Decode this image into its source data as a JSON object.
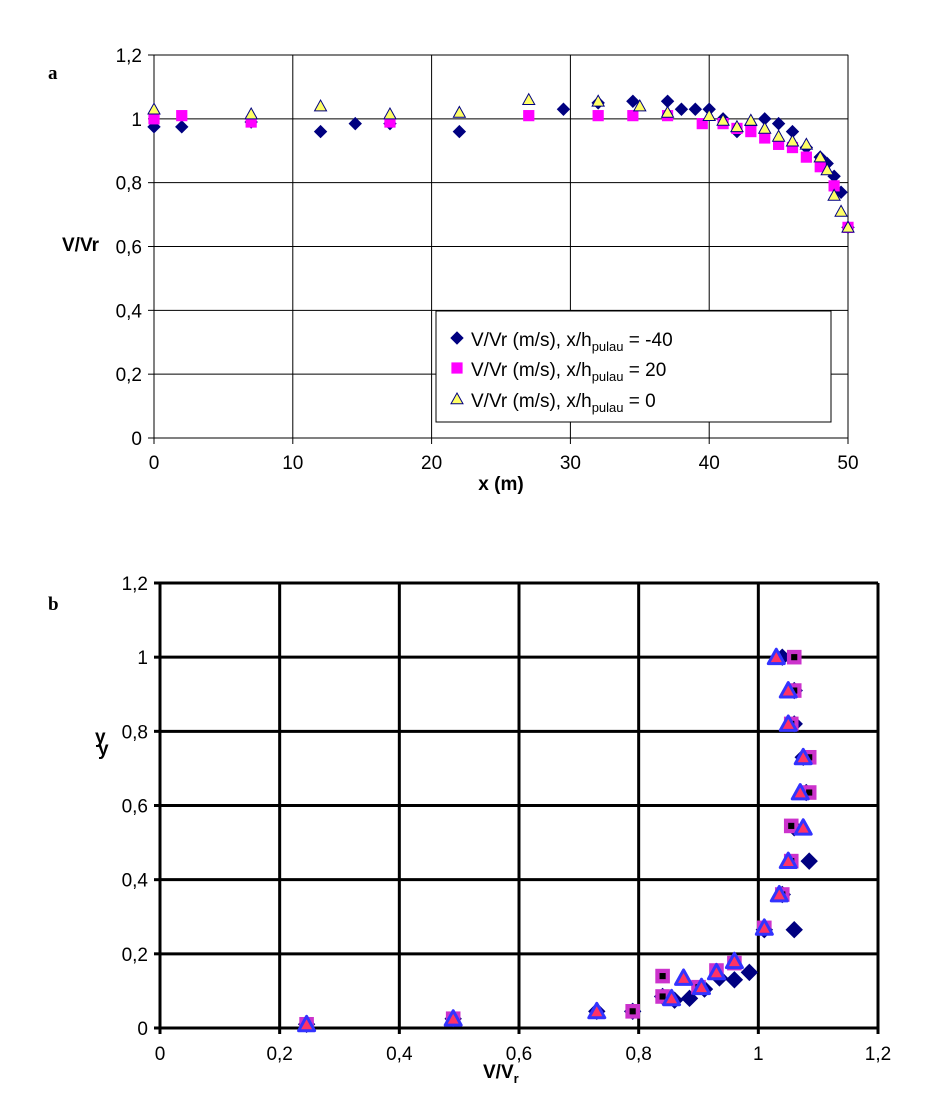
{
  "chart_data": [
    {
      "panel_label": "a",
      "type": "scatter",
      "xlabel": "x (m)",
      "ylabel": "V/Vr",
      "xlim": [
        0,
        50
      ],
      "ylim": [
        0,
        1.2
      ],
      "xticks": [
        0,
        10,
        20,
        30,
        40,
        50
      ],
      "yticks": [
        0,
        0.2,
        0.4,
        0.6,
        0.8,
        1,
        1.2
      ],
      "xtick_labels": [
        "0",
        "10",
        "20",
        "30",
        "40",
        "50"
      ],
      "ytick_labels": [
        "0",
        "0,2",
        "0,4",
        "0,6",
        "0,8",
        "1",
        "1,2"
      ],
      "grid": true,
      "legend_position": "lower-right",
      "series": [
        {
          "name": "V/Vr (m/s), x/hpulau = -40",
          "legend": {
            "prefix": "V/Vr (m/s), x/h",
            "sub": "pulau",
            "suffix": " = -40"
          },
          "marker": "diamond",
          "color": "#000080",
          "x": [
            0,
            2,
            7,
            12,
            14.5,
            17,
            22,
            29.5,
            32,
            34.5,
            37,
            38,
            39,
            40,
            41,
            42,
            43,
            44,
            45,
            46,
            47,
            48,
            48.5,
            49,
            49.5,
            50
          ],
          "y": [
            0.975,
            0.975,
            0.99,
            0.96,
            0.985,
            0.985,
            0.96,
            1.03,
            1.05,
            1.055,
            1.055,
            1.03,
            1.03,
            1.03,
            1.0,
            0.96,
            0.98,
            1.0,
            0.985,
            0.96,
            0.91,
            0.88,
            0.86,
            0.82,
            0.77,
            0.66
          ]
        },
        {
          "name": "V/Vr (m/s), x/hpulau = 20",
          "legend": {
            "prefix": "V/Vr (m/s), x/h",
            "sub": "pulau",
            "suffix": " = 20"
          },
          "marker": "square",
          "color": "#FF00FF",
          "x": [
            0,
            2,
            7,
            17,
            27,
            32,
            34.5,
            37,
            39.5,
            41,
            42,
            43,
            44,
            45,
            46,
            47,
            48,
            49,
            50
          ],
          "y": [
            1.0,
            1.01,
            0.99,
            0.99,
            1.01,
            1.01,
            1.01,
            1.01,
            0.985,
            0.985,
            0.97,
            0.96,
            0.94,
            0.92,
            0.91,
            0.88,
            0.85,
            0.79,
            0.66
          ]
        },
        {
          "name": "V/Vr (m/s), x/hpulau = 0",
          "legend": {
            "prefix": "V/Vr (m/s), x/h",
            "sub": "pulau",
            "suffix": " = 0"
          },
          "marker": "triangle",
          "color": "#FFFF66",
          "stroke": "#000080",
          "x": [
            0,
            7,
            12,
            17,
            22,
            27,
            32,
            35,
            37,
            40,
            41,
            42,
            43,
            44,
            45,
            46,
            47,
            48,
            48.5,
            49,
            49.5,
            50
          ],
          "y": [
            1.03,
            1.015,
            1.04,
            1.015,
            1.02,
            1.06,
            1.055,
            1.04,
            1.02,
            1.01,
            0.995,
            0.975,
            0.995,
            0.97,
            0.945,
            0.93,
            0.92,
            0.88,
            0.84,
            0.76,
            0.71,
            0.66
          ]
        }
      ]
    },
    {
      "panel_label": "b",
      "type": "scatter",
      "xlabel": "V/Vr",
      "xlabel_main": "V/V",
      "xlabel_sub": "r",
      "ylabel": "y",
      "xlim": [
        0,
        1.2
      ],
      "ylim": [
        0,
        1.2
      ],
      "xticks": [
        0,
        0.2,
        0.4,
        0.6,
        0.8,
        1,
        1.2
      ],
      "yticks": [
        0,
        0.2,
        0.4,
        0.6,
        0.8,
        1,
        1.2
      ],
      "xtick_labels": [
        "0",
        "0,2",
        "0,4",
        "0,6",
        "0,8",
        "1",
        "1,2"
      ],
      "ytick_labels": [
        "0",
        "0,2",
        "0,4",
        "0,6",
        "0,8",
        "1",
        "1,2"
      ],
      "grid": true,
      "legend_position": "none",
      "series": [
        {
          "marker": "diamond",
          "color": "#000080",
          "x": [
            0.245,
            0.49,
            0.73,
            0.79,
            0.84,
            0.86,
            0.885,
            0.91,
            0.935,
            0.96,
            0.985,
            1.01,
            1.04,
            1.06,
            1.085,
            1.06,
            1.08,
            1.075,
            1.06,
            1.06,
            1.04
          ],
          "y": [
            0.01,
            0.025,
            0.045,
            0.045,
            0.085,
            0.075,
            0.08,
            0.105,
            0.135,
            0.13,
            0.15,
            0.265,
            0.36,
            0.265,
            0.45,
            0.54,
            0.635,
            0.73,
            0.82,
            0.91,
            1.0
          ]
        },
        {
          "marker": "square",
          "color": "#CC33CC",
          "inner_color": "#000000",
          "x": [
            0.245,
            0.49,
            0.79,
            0.84,
            0.84,
            0.9,
            0.93,
            0.96,
            1.01,
            1.04,
            1.055,
            1.055,
            1.085,
            1.085,
            1.055,
            1.06,
            1.06
          ],
          "y": [
            0.01,
            0.025,
            0.045,
            0.085,
            0.14,
            0.11,
            0.155,
            0.175,
            0.27,
            0.36,
            0.45,
            0.545,
            0.635,
            0.73,
            0.82,
            0.91,
            1.0
          ]
        },
        {
          "marker": "triangle",
          "color": "#3333FF",
          "inner_color": "#FF3366",
          "x": [
            0.245,
            0.49,
            0.73,
            0.855,
            0.875,
            0.905,
            0.93,
            0.96,
            1.01,
            1.035,
            1.05,
            1.075,
            1.07,
            1.075,
            1.05,
            1.05,
            1.03
          ],
          "y": [
            0.01,
            0.025,
            0.045,
            0.08,
            0.135,
            0.11,
            0.15,
            0.18,
            0.27,
            0.36,
            0.45,
            0.54,
            0.635,
            0.73,
            0.82,
            0.91,
            1.0
          ]
        }
      ]
    }
  ]
}
